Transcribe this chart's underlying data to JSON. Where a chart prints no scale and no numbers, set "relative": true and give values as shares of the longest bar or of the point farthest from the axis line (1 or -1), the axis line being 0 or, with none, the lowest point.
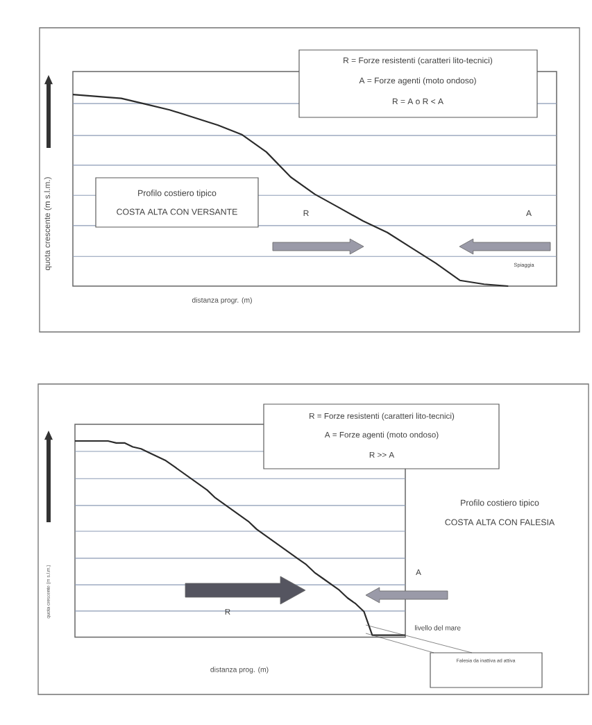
{
  "chart_data": [
    {
      "type": "line",
      "title": "Profilo costiero tipico",
      "subtitle": "COSTA ALTA CON VERSANTE",
      "xlabel": "distanza progr. (m)",
      "ylabel": "quota crescente (m s.l.m.)",
      "relative": true,
      "categories": [
        null,
        null,
        null,
        null,
        null,
        null,
        null,
        null,
        null,
        null,
        null,
        null,
        null,
        null,
        null,
        null,
        null,
        null,
        null,
        null,
        null
      ],
      "series": [
        {
          "color": "#2b2b2b",
          "values": [
            1.0,
            0.99,
            0.98,
            0.95,
            0.92,
            0.88,
            0.84,
            0.79,
            0.7,
            0.57,
            0.48,
            0.41,
            0.34,
            0.28,
            0.2,
            0.12,
            0.03,
            0.01,
            0.0,
            null,
            null
          ]
        }
      ],
      "ref_lines": [
        {
          "axis": "y",
          "value": 0.155,
          "color": "#8a9ab4"
        },
        {
          "axis": "y",
          "value": 0.316,
          "color": "#8a9ab4"
        },
        {
          "axis": "y",
          "value": 0.474,
          "color": "#8a9ab4"
        },
        {
          "axis": "y",
          "value": 0.631,
          "color": "#8a9ab4"
        },
        {
          "axis": "y",
          "value": 0.786,
          "color": "#8a9ab4"
        },
        {
          "axis": "y",
          "value": 0.953,
          "color": "#8a9ab4"
        }
      ],
      "annotations": [
        "R = Forze resistenti (caratteri lito-tecnici)",
        "A = Forze agenti (moto ondoso)",
        "R = A o R < A",
        "R",
        "A",
        "Spiaggia"
      ]
    },
    {
      "type": "line",
      "xlabel": "distanza prog. (m)",
      "ylabel": "quota crescente (m s.l.m.)",
      "relative": true,
      "categories": [
        null,
        null,
        null,
        null,
        null,
        null,
        null,
        null,
        null,
        null,
        null,
        null,
        null,
        null,
        null,
        null,
        null,
        null,
        null,
        null,
        null,
        null,
        null,
        null,
        null,
        null,
        null,
        null,
        null,
        null,
        null,
        null,
        null,
        null,
        null,
        null,
        null,
        null,
        null,
        null,
        null
      ],
      "series": [
        {
          "color": "#2b2b2b",
          "values": [
            1.0,
            1.0,
            1.0,
            1.0,
            1.0,
            0.99,
            0.99,
            0.97,
            0.96,
            0.94,
            0.92,
            0.9,
            0.87,
            0.84,
            0.81,
            0.78,
            0.75,
            0.71,
            0.68,
            0.65,
            0.62,
            0.59,
            0.55,
            0.52,
            0.49,
            0.46,
            0.43,
            0.4,
            0.37,
            0.33,
            0.3,
            0.27,
            0.24,
            0.2,
            0.17,
            0.13,
            0.01,
            0.01,
            0.01,
            0.01,
            0.01
          ]
        }
      ],
      "ref_lines": [
        {
          "axis": "y",
          "value": 0.133,
          "color": "#8a9ab4"
        },
        {
          "axis": "y",
          "value": 0.267,
          "color": "#8a9ab4"
        },
        {
          "axis": "y",
          "value": 0.402,
          "color": "#8a9ab4"
        },
        {
          "axis": "y",
          "value": 0.54,
          "color": "#8a9ab4"
        },
        {
          "axis": "y",
          "value": 0.671,
          "color": "#8a9ab4"
        },
        {
          "axis": "y",
          "value": 0.808,
          "color": "#8a9ab4"
        },
        {
          "axis": "y",
          "value": 0.947,
          "color": "#8a9ab4"
        }
      ],
      "annotations": [
        "R = Forze resistenti (caratteri lito-tecnici)",
        "A = Forze agenti (moto ondoso)",
        "R >> A",
        "A",
        "R",
        "livello del mare",
        "Falesia da inattiva ad attiva",
        "Profilo costiero tipico",
        "COSTA ALTA CON FALESIA"
      ]
    }
  ]
}
